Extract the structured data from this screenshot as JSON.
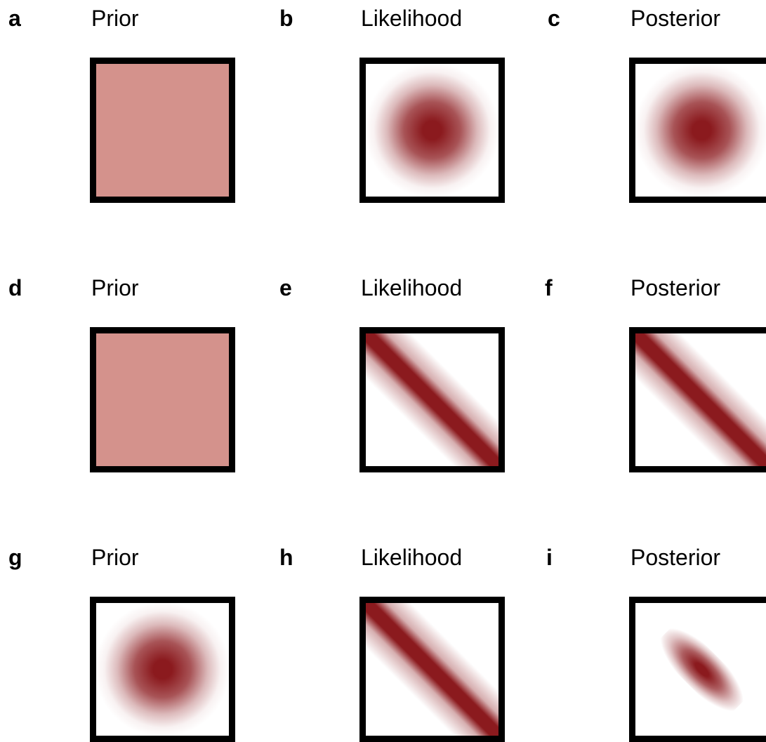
{
  "panels": [
    {
      "letter": "a",
      "title": "Prior",
      "pattern": "uniform"
    },
    {
      "letter": "b",
      "title": "Likelihood",
      "pattern": "blob"
    },
    {
      "letter": "c",
      "title": "Posterior",
      "pattern": "blob"
    },
    {
      "letter": "d",
      "title": "Prior",
      "pattern": "uniform"
    },
    {
      "letter": "e",
      "title": "Likelihood",
      "pattern": "band"
    },
    {
      "letter": "f",
      "title": "Posterior",
      "pattern": "band"
    },
    {
      "letter": "g",
      "title": "Prior",
      "pattern": "blob"
    },
    {
      "letter": "h",
      "title": "Likelihood",
      "pattern": "band"
    },
    {
      "letter": "i",
      "title": "Posterior",
      "pattern": "ellipse"
    }
  ],
  "colors": {
    "density": "#8b1a1e",
    "uniform_fill": "#d4928c",
    "frame": "#000000"
  }
}
